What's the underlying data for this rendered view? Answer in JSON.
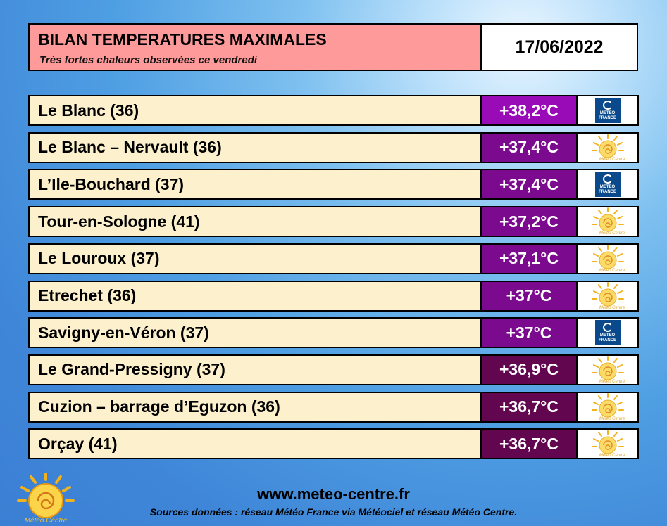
{
  "header": {
    "title": "BILAN TEMPERATURES MAXIMALES",
    "subtitle": "Très fortes chaleurs observées ce vendredi",
    "date": "17/06/2022"
  },
  "colors": {
    "temp_38_2": "#9a0bb8",
    "temp_37_x": "#7c0a8e",
    "temp_36_x": "#62064f"
  },
  "rows": [
    {
      "station": "Le Blanc (36)",
      "temp": "+38,2°C",
      "color": "#9a0bb8",
      "source_icon": "meteo-france-logo"
    },
    {
      "station": "Le Blanc – Nervault (36)",
      "temp": "+37,4°C",
      "color": "#7c0a8e",
      "source_icon": "meteo-centre-logo"
    },
    {
      "station": "L’Ile-Bouchard (37)",
      "temp": "+37,4°C",
      "color": "#7c0a8e",
      "source_icon": "meteo-france-logo"
    },
    {
      "station": "Tour-en-Sologne (41)",
      "temp": "+37,2°C",
      "color": "#7c0a8e",
      "source_icon": "meteo-centre-logo"
    },
    {
      "station": "Le Louroux (37)",
      "temp": "+37,1°C",
      "color": "#7c0a8e",
      "source_icon": "meteo-centre-logo"
    },
    {
      "station": "Etrechet (36)",
      "temp": "+37°C",
      "color": "#7c0a8e",
      "source_icon": "meteo-centre-logo"
    },
    {
      "station": "Savigny-en-Véron (37)",
      "temp": "+37°C",
      "color": "#7c0a8e",
      "source_icon": "meteo-france-logo"
    },
    {
      "station": "Le Grand-Pressigny (37)",
      "temp": "+36,9°C",
      "color": "#62064f",
      "source_icon": "meteo-centre-logo"
    },
    {
      "station": "Cuzion – barrage d’Eguzon (36)",
      "temp": "+36,7°C",
      "color": "#62064f",
      "source_icon": "meteo-centre-logo"
    },
    {
      "station": "Orçay (41)",
      "temp": "+36,7°C",
      "color": "#62064f",
      "source_icon": "meteo-centre-logo"
    }
  ],
  "logos": {
    "meteo_france_text": "METEO FRANCE",
    "meteo_centre_text": "Météo Centre"
  },
  "footer": {
    "url": "www.meteo-centre.fr",
    "sources": "Sources données : réseau Météo France via Météociel et réseau Météo Centre."
  }
}
